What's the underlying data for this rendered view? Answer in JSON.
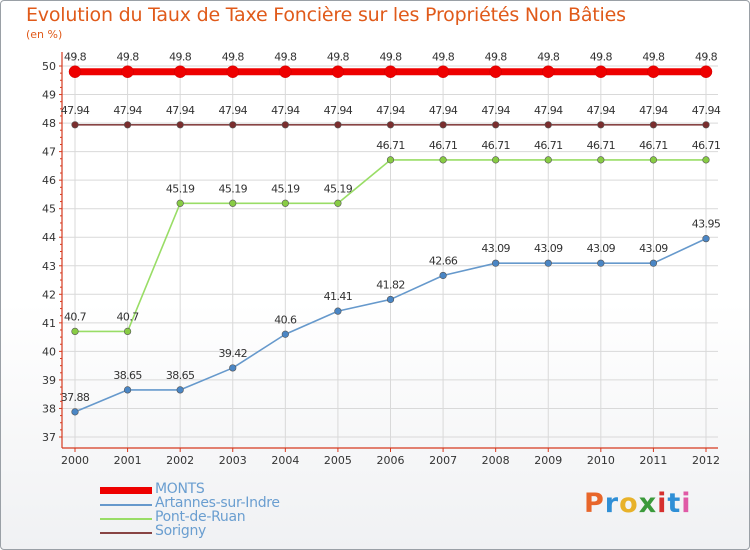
{
  "title": "Evolution du Taux de Taxe Foncière sur les Propriétés Non Bâties",
  "unit_label": "(en %)",
  "logo_text": "Proxiti",
  "colors": {
    "title": "#e05a1a",
    "axis": "#d63a1f",
    "grid": "#d9d9d9",
    "logo": [
      "#e8662a",
      "#2f8fd6",
      "#e8b22a",
      "#3b9a3b",
      "#d6302f",
      "#2f8fd6",
      "#e05aa6"
    ]
  },
  "chart_data": {
    "type": "line",
    "title": "Evolution du Taux de Taxe Foncière sur les Propriétés Non Bâties",
    "ylabel": "(en %)",
    "xlabel": "",
    "x": [
      "2000",
      "2001",
      "2002",
      "2003",
      "2004",
      "2005",
      "2006",
      "2007",
      "2008",
      "2009",
      "2010",
      "2011",
      "2012"
    ],
    "ylim": [
      37,
      50
    ],
    "yticks": [
      "37",
      "38",
      "39",
      "40",
      "41",
      "42",
      "43",
      "44",
      "45",
      "46",
      "47",
      "48",
      "49",
      "50"
    ],
    "grid": true,
    "legend_position": "bottom-left",
    "series": [
      {
        "name": "MONTS",
        "color": "#ee0000",
        "marker_fill": "#ee0000",
        "values": [
          49.8,
          49.8,
          49.8,
          49.8,
          49.8,
          49.8,
          49.8,
          49.8,
          49.8,
          49.8,
          49.8,
          49.8,
          49.8
        ],
        "labels": [
          "49.8",
          "49.8",
          "49.8",
          "49.8",
          "49.8",
          "49.8",
          "49.8",
          "49.8",
          "49.8",
          "49.8",
          "49.8",
          "49.8",
          "49.8"
        ]
      },
      {
        "name": "Artannes-sur-Indre",
        "color": "#6699cc",
        "marker_fill": "#4a86c5",
        "values": [
          37.88,
          38.65,
          38.65,
          39.42,
          40.6,
          41.41,
          41.82,
          42.66,
          43.09,
          43.09,
          43.09,
          43.09,
          43.95
        ],
        "labels": [
          "37.88",
          "38.65",
          "38.65",
          "39.42",
          "40.6",
          "41.41",
          "41.82",
          "42.66",
          "43.09",
          "43.09",
          "43.09",
          "43.09",
          "43.95"
        ]
      },
      {
        "name": "Pont-de-Ruan",
        "color": "#99dd66",
        "marker_fill": "#88cc44",
        "values": [
          40.7,
          40.7,
          45.19,
          45.19,
          45.19,
          45.19,
          46.71,
          46.71,
          46.71,
          46.71,
          46.71,
          46.71,
          46.71
        ],
        "labels": [
          "40.7",
          "40.7",
          "45.19",
          "45.19",
          "45.19",
          "45.19",
          "46.71",
          "46.71",
          "46.71",
          "46.71",
          "46.71",
          "46.71",
          "46.71"
        ]
      },
      {
        "name": "Sorigny",
        "color": "#884444",
        "marker_fill": "#7a2e2e",
        "values": [
          47.94,
          47.94,
          47.94,
          47.94,
          47.94,
          47.94,
          47.94,
          47.94,
          47.94,
          47.94,
          47.94,
          47.94,
          47.94
        ],
        "labels": [
          "47.94",
          "47.94",
          "47.94",
          "47.94",
          "47.94",
          "47.94",
          "47.94",
          "47.94",
          "47.94",
          "47.94",
          "47.94",
          "47.94",
          "47.94"
        ]
      }
    ]
  }
}
